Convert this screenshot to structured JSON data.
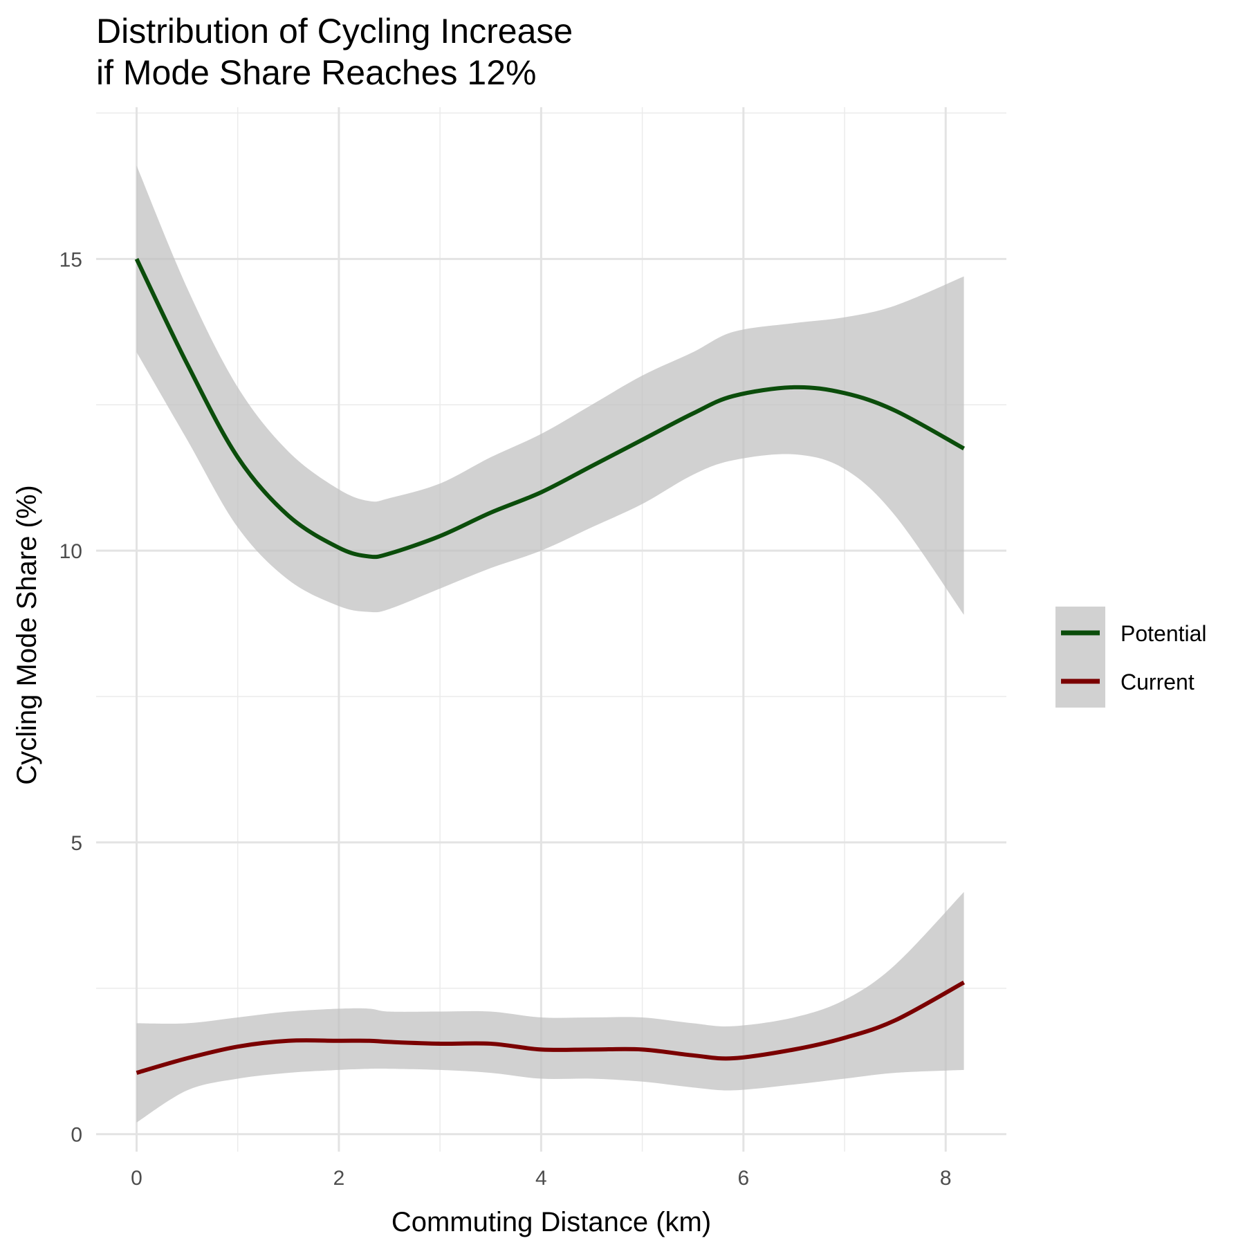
{
  "chart_data": {
    "type": "line",
    "title_lines": [
      "Distribution of Cycling Increase",
      "if Mode Share Reaches 12%"
    ],
    "xlabel": "Commuting Distance (km)",
    "ylabel": "Cycling Mode Share (%)",
    "xlim": [
      -0.4,
      8.6
    ],
    "ylim": [
      -0.3,
      17.6
    ],
    "x_ticks": [
      0,
      2,
      4,
      6,
      8
    ],
    "y_ticks": [
      0,
      5,
      10,
      15
    ],
    "x_tick_labels": [
      "0",
      "2",
      "4",
      "6",
      "8"
    ],
    "y_tick_labels": [
      "0",
      "5",
      "10",
      "15"
    ],
    "grid": true,
    "legend_position": "right",
    "series": [
      {
        "name": "Potential",
        "color": "#0b4d0b",
        "x": [
          0,
          0.5,
          1,
          1.5,
          2,
          2.3,
          2.5,
          3,
          3.5,
          4,
          4.5,
          5,
          5.5,
          5.9,
          6.5,
          7,
          7.5,
          8.18
        ],
        "y": [
          15.0,
          13.2,
          11.6,
          10.6,
          10.05,
          9.9,
          9.95,
          10.25,
          10.65,
          11.0,
          11.45,
          11.9,
          12.35,
          12.65,
          12.8,
          12.7,
          12.4,
          11.75
        ],
        "lower": [
          13.4,
          11.9,
          10.4,
          9.5,
          9.05,
          8.95,
          9.0,
          9.35,
          9.7,
          10.0,
          10.4,
          10.8,
          11.3,
          11.55,
          11.65,
          11.4,
          10.6,
          8.9
        ],
        "upper": [
          16.6,
          14.5,
          12.8,
          11.7,
          11.05,
          10.85,
          10.9,
          11.15,
          11.6,
          12.0,
          12.5,
          13.0,
          13.4,
          13.75,
          13.9,
          14.0,
          14.2,
          14.7
        ]
      },
      {
        "name": "Current",
        "color": "#7a0000",
        "x": [
          0,
          0.5,
          1,
          1.5,
          2,
          2.3,
          2.5,
          3,
          3.5,
          4,
          4.5,
          5,
          5.5,
          5.9,
          6.5,
          7,
          7.5,
          8.18
        ],
        "y": [
          1.05,
          1.3,
          1.5,
          1.6,
          1.6,
          1.6,
          1.58,
          1.55,
          1.55,
          1.45,
          1.45,
          1.45,
          1.35,
          1.3,
          1.45,
          1.65,
          1.95,
          2.6
        ],
        "lower": [
          0.2,
          0.75,
          0.95,
          1.05,
          1.1,
          1.12,
          1.12,
          1.1,
          1.05,
          0.95,
          0.95,
          0.9,
          0.8,
          0.75,
          0.85,
          0.95,
          1.05,
          1.1
        ],
        "upper": [
          1.9,
          1.9,
          2.0,
          2.1,
          2.15,
          2.15,
          2.1,
          2.1,
          2.1,
          2.0,
          2.0,
          2.0,
          1.9,
          1.85,
          2.0,
          2.3,
          2.9,
          4.15
        ]
      }
    ],
    "ribbon_color": "#bdbdbd"
  }
}
